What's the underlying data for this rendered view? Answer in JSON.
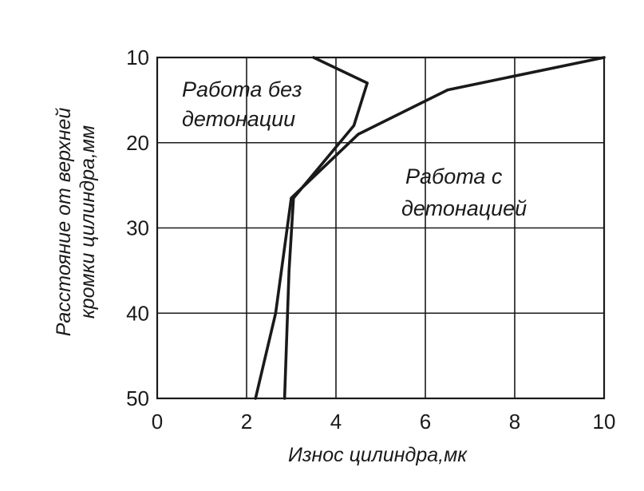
{
  "chart_data": {
    "type": "line",
    "xlabel": "Износ цилиндра,мк",
    "ylabel_lines": [
      "Расстояние от верхней",
      "кромки цилиндра,мм"
    ],
    "xlim": [
      0,
      10
    ],
    "ylim": [
      10,
      50
    ],
    "y_inverted": true,
    "x_ticks": [
      "0",
      "2",
      "4",
      "6",
      "8",
      "10"
    ],
    "y_ticks": [
      "10",
      "20",
      "30",
      "40",
      "50"
    ],
    "grid": true,
    "series": [
      {
        "annotation_lines": [
          "Работа без",
          "детонации"
        ],
        "x": [
          3.5,
          4.7,
          4.4,
          3.05,
          2.95,
          2.85
        ],
        "y": [
          10,
          13,
          18,
          26.5,
          35,
          50
        ]
      },
      {
        "annotation_lines": [
          "Работа с",
          "детонацией"
        ],
        "x": [
          10.0,
          6.5,
          4.5,
          3.0,
          2.65,
          2.2
        ],
        "y": [
          10,
          13.8,
          19,
          26.5,
          40,
          50
        ]
      }
    ]
  }
}
